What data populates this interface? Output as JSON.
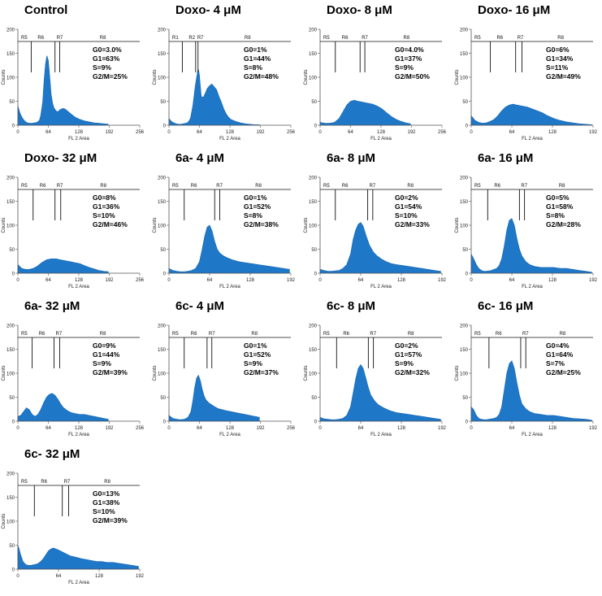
{
  "chart_data": [
    {
      "type": "area",
      "title": "Control",
      "ylabel": "Counts",
      "xlabel": "FL 2 Area",
      "xticks": [
        0,
        64,
        128,
        192,
        256
      ],
      "yticks": [
        0,
        50,
        100,
        150,
        200
      ],
      "xlim": [
        0,
        256
      ],
      "ylim": [
        0,
        200
      ],
      "regions": [
        "R5",
        "R6",
        "R7",
        "R8"
      ],
      "gate_x": [
        28,
        78,
        88
      ],
      "stats": [
        "G0=3.0%",
        "G1=63%",
        "S=9%",
        "G2/M=25%"
      ],
      "histogram": {
        "x": [
          0,
          5,
          10,
          15,
          20,
          25,
          30,
          35,
          40,
          45,
          48,
          52,
          55,
          58,
          61,
          64,
          67,
          70,
          73,
          76,
          80,
          84,
          88,
          92,
          96,
          100,
          104,
          110,
          116,
          122,
          128,
          134,
          140,
          150,
          160,
          170,
          180,
          190
        ],
        "y": [
          40,
          24,
          14,
          8,
          5,
          4,
          4,
          5,
          6,
          10,
          20,
          48,
          92,
          128,
          145,
          135,
          100,
          64,
          46,
          36,
          30,
          28,
          32,
          34,
          35,
          33,
          30,
          25,
          20,
          16,
          13,
          11,
          9,
          7,
          5,
          4,
          3,
          2
        ]
      }
    },
    {
      "type": "area",
      "title": "Doxo- 4 μM",
      "ylabel": "Counts",
      "xlabel": "FL 2 Area",
      "xticks": [
        0,
        64,
        128,
        192,
        256
      ],
      "yticks": [
        0,
        50,
        100,
        150,
        200
      ],
      "xlim": [
        0,
        256
      ],
      "ylim": [
        0,
        200
      ],
      "regions": [
        "R1",
        "R2",
        "R7",
        "R8"
      ],
      "gate_x": [
        28,
        56,
        61
      ],
      "stats": [
        "G0=1%",
        "G1=44%",
        "S=8%",
        "G2/M=48%"
      ],
      "histogram": {
        "x": [
          0,
          5,
          10,
          15,
          20,
          25,
          30,
          35,
          40,
          45,
          50,
          55,
          58,
          60,
          62,
          64,
          66,
          68,
          72,
          76,
          80,
          85,
          90,
          95,
          100,
          105,
          110,
          115,
          120,
          125,
          130,
          140,
          150,
          160,
          170,
          180,
          190
        ],
        "y": [
          14,
          8,
          5,
          3,
          2,
          2,
          3,
          4,
          6,
          14,
          40,
          80,
          100,
          112,
          116,
          104,
          80,
          60,
          58,
          66,
          76,
          82,
          86,
          80,
          74,
          60,
          48,
          34,
          24,
          17,
          12,
          8,
          5,
          3,
          2,
          1,
          1
        ]
      }
    },
    {
      "type": "area",
      "title": "Doxo- 8 μM",
      "ylabel": "Counts",
      "xlabel": "FL 2 Area",
      "xticks": [
        0,
        64,
        128,
        192,
        256
      ],
      "yticks": [
        0,
        50,
        100,
        150,
        200
      ],
      "xlim": [
        0,
        256
      ],
      "ylim": [
        0,
        200
      ],
      "regions": [
        "R5",
        "R6",
        "R7",
        "R8"
      ],
      "gate_x": [
        32,
        84,
        94
      ],
      "stats": [
        "G0=4.0%",
        "G1=37%",
        "S=9%",
        "G2/M=50%"
      ],
      "histogram": {
        "x": [
          0,
          10,
          20,
          30,
          40,
          48,
          56,
          64,
          72,
          80,
          90,
          100,
          110,
          120,
          130,
          140,
          150,
          160,
          170,
          180,
          190
        ],
        "y": [
          6,
          4,
          4,
          6,
          14,
          28,
          42,
          50,
          52,
          50,
          48,
          46,
          44,
          40,
          34,
          26,
          18,
          12,
          8,
          5,
          3
        ]
      }
    },
    {
      "type": "area",
      "title": "Doxo- 16 μM",
      "ylabel": "Counts",
      "xlabel": "FL 2 Area",
      "xticks": [
        0,
        64,
        128,
        192
      ],
      "yticks": [
        0,
        50,
        100,
        150,
        200
      ],
      "xlim": [
        0,
        192
      ],
      "ylim": [
        0,
        200
      ],
      "regions": [
        "R5",
        "R6",
        "R7",
        "R8"
      ],
      "gate_x": [
        30,
        70,
        80
      ],
      "stats": [
        "G0=6%",
        "G1=34%",
        "S=11%",
        "G2/M=49%"
      ],
      "histogram": {
        "x": [
          0,
          6,
          12,
          18,
          24,
          30,
          36,
          42,
          48,
          54,
          60,
          66,
          72,
          80,
          88,
          96,
          104,
          112,
          120,
          130,
          140,
          150,
          160,
          170,
          180,
          190
        ],
        "y": [
          20,
          10,
          6,
          4,
          5,
          8,
          12,
          20,
          30,
          38,
          42,
          44,
          42,
          40,
          38,
          34,
          30,
          26,
          20,
          14,
          10,
          7,
          5,
          3,
          2,
          1
        ]
      }
    },
    {
      "type": "area",
      "title": "Doxo- 32 μM",
      "ylabel": "Counts",
      "xlabel": "FL 2 Area",
      "xticks": [
        0,
        64,
        128,
        192,
        256
      ],
      "yticks": [
        0,
        50,
        100,
        150,
        200
      ],
      "xlim": [
        0,
        256
      ],
      "ylim": [
        0,
        200
      ],
      "regions": [
        "R5",
        "R6",
        "R7",
        "R8"
      ],
      "gate_x": [
        32,
        78,
        90
      ],
      "stats": [
        "G0=8%",
        "G1=36%",
        "S=10%",
        "G2/M=46%"
      ],
      "histogram": {
        "x": [
          0,
          8,
          16,
          24,
          32,
          40,
          50,
          60,
          70,
          80,
          90,
          100,
          110,
          120,
          130,
          140,
          150,
          160,
          170,
          180,
          190
        ],
        "y": [
          18,
          10,
          8,
          8,
          10,
          14,
          22,
          28,
          30,
          30,
          28,
          26,
          24,
          22,
          20,
          16,
          12,
          9,
          6,
          4,
          3
        ]
      }
    },
    {
      "type": "area",
      "title": "6a- 4 μM",
      "ylabel": "Counts",
      "xlabel": "FL 2 Area",
      "xticks": [
        0,
        64,
        128,
        192
      ],
      "yticks": [
        0,
        50,
        100,
        150,
        200
      ],
      "xlim": [
        0,
        192
      ],
      "ylim": [
        0,
        200
      ],
      "regions": [
        "R5",
        "R6",
        "R7",
        "R8"
      ],
      "gate_x": [
        24,
        72,
        80
      ],
      "stats": [
        "G0=1%",
        "G1=52%",
        "S=8%",
        "G2/M=38%"
      ],
      "histogram": {
        "x": [
          0,
          6,
          12,
          18,
          24,
          30,
          36,
          42,
          48,
          52,
          56,
          60,
          64,
          68,
          72,
          76,
          80,
          86,
          92,
          100,
          110,
          120,
          130,
          140,
          150,
          160,
          170,
          180,
          190
        ],
        "y": [
          10,
          6,
          4,
          3,
          3,
          4,
          6,
          10,
          24,
          48,
          76,
          96,
          100,
          88,
          66,
          50,
          42,
          36,
          32,
          28,
          24,
          22,
          20,
          18,
          16,
          14,
          12,
          10,
          8
        ]
      }
    },
    {
      "type": "area",
      "title": "6a- 8 μM",
      "ylabel": "Counts",
      "xlabel": "FL 2 Area",
      "xticks": [
        0,
        64,
        128,
        192
      ],
      "yticks": [
        0,
        50,
        100,
        150,
        200
      ],
      "xlim": [
        0,
        192
      ],
      "ylim": [
        0,
        200
      ],
      "regions": [
        "R5",
        "R6",
        "R7",
        "R8"
      ],
      "gate_x": [
        24,
        75,
        83
      ],
      "stats": [
        "G0=2%",
        "G1=54%",
        "S=10%",
        "G2/M=33%"
      ],
      "histogram": {
        "x": [
          0,
          6,
          12,
          18,
          24,
          30,
          36,
          42,
          48,
          52,
          56,
          60,
          64,
          68,
          72,
          78,
          84,
          90,
          96,
          104,
          112,
          120,
          130,
          140,
          150,
          160,
          170,
          180,
          190
        ],
        "y": [
          8,
          6,
          4,
          4,
          5,
          6,
          10,
          18,
          40,
          70,
          90,
          102,
          106,
          98,
          80,
          58,
          44,
          36,
          30,
          24,
          20,
          18,
          16,
          14,
          12,
          10,
          8,
          6,
          4
        ]
      }
    },
    {
      "type": "area",
      "title": "6a- 16 μM",
      "ylabel": "Counts",
      "xlabel": "FL 2 Area",
      "xticks": [
        0,
        64,
        128,
        192
      ],
      "yticks": [
        0,
        50,
        100,
        150,
        200
      ],
      "xlim": [
        0,
        192
      ],
      "ylim": [
        0,
        200
      ],
      "regions": [
        "R5",
        "R6",
        "R7",
        "R8"
      ],
      "gate_x": [
        26,
        76,
        84
      ],
      "stats": [
        "G0=5%",
        "G1=58%",
        "S=8%",
        "G2/M=28%"
      ],
      "histogram": {
        "x": [
          0,
          4,
          8,
          12,
          16,
          20,
          24,
          28,
          32,
          36,
          40,
          44,
          48,
          52,
          56,
          60,
          64,
          68,
          72,
          76,
          80,
          86,
          92,
          100,
          110,
          120,
          130,
          140,
          150,
          160,
          170,
          180,
          190
        ],
        "y": [
          40,
          30,
          18,
          10,
          6,
          4,
          4,
          5,
          6,
          8,
          10,
          16,
          30,
          56,
          90,
          110,
          114,
          100,
          72,
          50,
          36,
          24,
          18,
          14,
          12,
          12,
          12,
          10,
          10,
          8,
          6,
          4,
          2
        ]
      }
    },
    {
      "type": "area",
      "title": "6a- 32 μM",
      "ylabel": "Counts",
      "xlabel": "FL 2 Area",
      "xticks": [
        0,
        64,
        128,
        192,
        256
      ],
      "yticks": [
        0,
        50,
        100,
        150,
        200
      ],
      "xlim": [
        0,
        256
      ],
      "ylim": [
        0,
        200
      ],
      "regions": [
        "R5",
        "R6",
        "R7",
        "R8"
      ],
      "gate_x": [
        30,
        76,
        88
      ],
      "stats": [
        "G0=9%",
        "G1=44%",
        "S=9%",
        "G2/M=39%"
      ],
      "histogram": {
        "x": [
          0,
          6,
          12,
          18,
          24,
          30,
          36,
          42,
          48,
          54,
          60,
          66,
          72,
          78,
          84,
          90,
          96,
          104,
          112,
          120,
          130,
          140,
          150,
          160,
          170,
          180,
          190
        ],
        "y": [
          10,
          12,
          20,
          28,
          24,
          14,
          10,
          14,
          24,
          38,
          50,
          56,
          58,
          54,
          46,
          36,
          28,
          22,
          18,
          16,
          14,
          14,
          12,
          10,
          8,
          6,
          4
        ]
      }
    },
    {
      "type": "area",
      "title": "6c- 4 μM",
      "ylabel": "Counts",
      "xlabel": "FL 2 Area",
      "xticks": [
        0,
        64,
        128,
        192,
        256
      ],
      "yticks": [
        0,
        50,
        100,
        150,
        200
      ],
      "xlim": [
        0,
        256
      ],
      "ylim": [
        0,
        200
      ],
      "regions": [
        "R5",
        "R6",
        "R7",
        "R8"
      ],
      "gate_x": [
        32,
        80,
        90
      ],
      "stats": [
        "G0=1%",
        "G1=52%",
        "S=9%",
        "G2/M=37%"
      ],
      "histogram": {
        "x": [
          0,
          8,
          16,
          24,
          32,
          40,
          46,
          50,
          54,
          58,
          62,
          66,
          70,
          74,
          78,
          84,
          90,
          96,
          104,
          112,
          120,
          130,
          140,
          150,
          160,
          170,
          180,
          190
        ],
        "y": [
          12,
          6,
          4,
          3,
          4,
          8,
          20,
          42,
          70,
          90,
          96,
          84,
          66,
          52,
          44,
          38,
          34,
          30,
          26,
          24,
          22,
          20,
          18,
          16,
          14,
          12,
          10,
          8
        ]
      }
    },
    {
      "type": "area",
      "title": "6c- 8 μM",
      "ylabel": "Counts",
      "xlabel": "FL 2 Area",
      "xticks": [
        0,
        64,
        128,
        192
      ],
      "yticks": [
        0,
        50,
        100,
        150,
        200
      ],
      "xlim": [
        0,
        192
      ],
      "ylim": [
        0,
        200
      ],
      "regions": [
        "R5",
        "R6",
        "R7",
        "R8"
      ],
      "gate_x": [
        26,
        76,
        84
      ],
      "stats": [
        "G0=2%",
        "G1=57%",
        "S=9%",
        "G2/M=32%"
      ],
      "histogram": {
        "x": [
          0,
          6,
          12,
          18,
          24,
          30,
          36,
          42,
          48,
          52,
          56,
          60,
          64,
          68,
          72,
          76,
          80,
          86,
          92,
          100,
          110,
          120,
          130,
          140,
          150,
          160,
          170,
          180,
          190
        ],
        "y": [
          8,
          5,
          4,
          3,
          3,
          4,
          6,
          12,
          30,
          58,
          88,
          110,
          118,
          110,
          90,
          70,
          54,
          42,
          34,
          28,
          22,
          18,
          16,
          14,
          12,
          10,
          8,
          6,
          4
        ]
      }
    },
    {
      "type": "area",
      "title": "6c- 16 μM",
      "ylabel": "Counts",
      "xlabel": "FL 2 Area",
      "xticks": [
        0,
        64,
        128,
        192
      ],
      "yticks": [
        0,
        50,
        100,
        150,
        200
      ],
      "xlim": [
        0,
        192
      ],
      "ylim": [
        0,
        200
      ],
      "regions": [
        "R5",
        "R6",
        "R7",
        "R8"
      ],
      "gate_x": [
        28,
        78,
        86
      ],
      "stats": [
        "G0=4%",
        "G1=64%",
        "S=7%",
        "G2/M=25%"
      ],
      "histogram": {
        "x": [
          0,
          4,
          8,
          12,
          16,
          20,
          24,
          28,
          32,
          36,
          40,
          44,
          48,
          52,
          56,
          60,
          64,
          68,
          72,
          76,
          80,
          86,
          92,
          100,
          110,
          120,
          130,
          140,
          150,
          160,
          170,
          180,
          190
        ],
        "y": [
          30,
          24,
          12,
          6,
          4,
          3,
          3,
          4,
          5,
          6,
          8,
          14,
          30,
          64,
          100,
          120,
          126,
          110,
          80,
          54,
          36,
          26,
          20,
          16,
          14,
          12,
          12,
          10,
          8,
          6,
          5,
          4,
          2
        ]
      }
    },
    {
      "type": "area",
      "title": "6c- 32 μM",
      "ylabel": "Counts",
      "xlabel": "FL 2 Area",
      "xticks": [
        0,
        64,
        128,
        192
      ],
      "yticks": [
        0,
        50,
        100,
        150,
        200
      ],
      "xlim": [
        0,
        192
      ],
      "ylim": [
        0,
        200
      ],
      "regions": [
        "R5",
        "R6",
        "R7",
        "R8"
      ],
      "gate_x": [
        26,
        70,
        80
      ],
      "stats": [
        "G0=13%",
        "G1=38%",
        "S=10%",
        "G2/M=39%"
      ],
      "histogram": {
        "x": [
          0,
          2,
          4,
          6,
          8,
          12,
          16,
          20,
          24,
          28,
          32,
          36,
          40,
          44,
          48,
          52,
          56,
          60,
          64,
          70,
          76,
          82,
          88,
          94,
          100,
          108,
          116,
          124,
          132,
          140,
          150,
          160,
          170,
          180,
          190
        ],
        "y": [
          50,
          42,
          32,
          24,
          16,
          10,
          8,
          8,
          9,
          10,
          12,
          16,
          22,
          30,
          38,
          42,
          44,
          42,
          40,
          36,
          32,
          28,
          26,
          24,
          22,
          20,
          18,
          16,
          16,
          14,
          14,
          12,
          10,
          8,
          6
        ]
      }
    }
  ]
}
